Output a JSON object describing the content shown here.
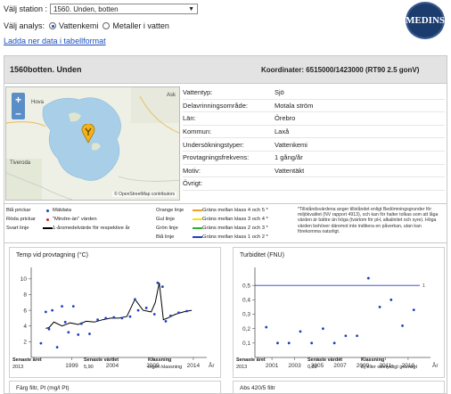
{
  "station_select": {
    "label": "Välj station :",
    "value": "1560. Unden, botten"
  },
  "analysis": {
    "label": "Välj analys:",
    "options": [
      "Vattenkemi",
      "Metaller i vatten"
    ],
    "selected": "Vattenkemi"
  },
  "download_link": "Ladda ner data i tabellformat",
  "logo_text": "MEDINS",
  "station": {
    "name": "1560botten. Unden",
    "coordinates": "Koordinater: 6515000/1423000 (RT90 2.5 gonV)"
  },
  "map": {
    "zoom_in": "+",
    "zoom_out": "–",
    "places": [
      "Hova",
      "Ask",
      "Tiveroda"
    ],
    "attribution": "© OpenStreetMap contributors"
  },
  "info": [
    {
      "label": "Vattentyp:",
      "value": "Sjö"
    },
    {
      "label": "Delavrinningsområde:",
      "value": "Motala ström"
    },
    {
      "label": "Län:",
      "value": "Örebro"
    },
    {
      "label": "Kommun:",
      "value": "Laxå"
    },
    {
      "label": "Undersökningstyper:",
      "value": "Vattenkemi"
    },
    {
      "label": "Provtagningsfrekvens:",
      "value": "1 gång/år"
    },
    {
      "label": "Motiv:",
      "value": "Vattentäkt"
    },
    {
      "label": "Övrigt:",
      "value": ""
    }
  ],
  "legend": {
    "left": [
      {
        "key": "Blå prickar",
        "text": "Mätdata",
        "color": "#1f3fbf"
      },
      {
        "key": "Röda prickar",
        "text": "\"Mindre-än\" värden",
        "color": "#d62020"
      },
      {
        "key": "Svart linje",
        "text": "1-årsmedelvärde för respektive år",
        "color": "#000000"
      }
    ],
    "right": [
      {
        "key": "Orange linje",
        "text": "Gräns mellan klass 4 och 5 *",
        "color": "#f0a020"
      },
      {
        "key": "Gul linje",
        "text": "Gräns mellan klass 3 och 4 *",
        "color": "#f5e400"
      },
      {
        "key": "Grön linje",
        "text": "Gräns mellan klass 2 och 3 *",
        "color": "#2fae2f"
      },
      {
        "key": "Blå linje",
        "text": "Gräns mellan klass 1 och 2 *",
        "color": "#1f3fbf"
      }
    ],
    "note": "*Tillståndsvärdena anger tillståndet enligt Bedömningsgrunder för miljökvalitet (NV rapport 4913), och kan för halter tolkas som att låga värden är bättre än höga (tvärtom för pH, alkalinitet och syre). Höga värden behöver däremot inte indikera en påverkan, utan kan förekomma naturligt."
  },
  "chart_data": [
    {
      "type": "scatter",
      "title": "Temp vid provtagning (°C)",
      "xlabel": "År",
      "ylabel": "",
      "xlim": [
        1994,
        2015
      ],
      "ylim": [
        0,
        11
      ],
      "x_ticks": [
        1999,
        2004,
        2009,
        2014
      ],
      "y_ticks": [
        2,
        4,
        6,
        8,
        10
      ],
      "grid": false,
      "series": [
        {
          "name": "Mätdata",
          "x": [
            1995.2,
            1995.8,
            1996.2,
            1996.6,
            1997.2,
            1997.8,
            1998.2,
            1998.6,
            1999.2,
            1999.8,
            2000.2,
            2001.2,
            2002.2,
            2003.2,
            2004.2,
            2005.2,
            2006.2,
            2006.8,
            2007.2,
            2008.2,
            2009.2,
            2009.6,
            2010.2,
            2010.6,
            2011.2,
            2012.2,
            2013.2
          ],
          "y": [
            1.8,
            5.8,
            3.6,
            6.0,
            1.3,
            6.5,
            4.5,
            3.2,
            6.5,
            2.9,
            4.3,
            3.0,
            4.8,
            5.0,
            5.1,
            5.0,
            5.2,
            7.4,
            6.0,
            6.3,
            5.5,
            9.5,
            9.0,
            4.6,
            5.3,
            5.7,
            5.9
          ]
        },
        {
          "name": "1-årsmedelvärde",
          "x": [
            1995.8,
            1996.2,
            1996.8,
            1997.8,
            1998.8,
            1999.8,
            2000.8,
            2001.8,
            2002.8,
            2003.8,
            2004.8,
            2005.8,
            2006.8,
            2007.8,
            2008.8,
            2009.3,
            2009.8,
            2010.3,
            2010.8,
            2011.8,
            2012.8,
            2013.8
          ],
          "y": [
            3.7,
            3.8,
            4.5,
            4.0,
            4.4,
            4.2,
            4.6,
            4.5,
            4.8,
            5.0,
            5.0,
            5.2,
            7.4,
            6.0,
            5.8,
            7.0,
            9.5,
            4.8,
            5.0,
            5.5,
            5.8,
            6.0
          ]
        }
      ],
      "stats": {
        "latest_year_label": "Senaste året",
        "latest_year": "2013",
        "latest_value_label": "Senaste värdet",
        "latest_value": "5,90",
        "class_label": "Klassning",
        "class": "Ingen klassning"
      }
    },
    {
      "type": "scatter",
      "title": "Turbiditet (FNU)",
      "xlabel": "År",
      "ylabel": "",
      "xlim": [
        1999.5,
        2014.5
      ],
      "ylim": [
        0,
        0.6
      ],
      "x_ticks": [
        2001,
        2003,
        2005,
        2007,
        2009,
        2011,
        2013
      ],
      "y_ticks": [
        0.1,
        0.2,
        0.3,
        0.4,
        0.5
      ],
      "y_tick_labels": [
        "0,1",
        "0,2",
        "0,3",
        "0,4",
        "0,5"
      ],
      "grid": false,
      "class_line": {
        "value": 0.5,
        "label": "1",
        "color": "#1f3fbf"
      },
      "series": [
        {
          "name": "Mätdata",
          "x": [
            2000.5,
            2001.5,
            2002.5,
            2003.5,
            2004.5,
            2005.5,
            2006.5,
            2007.5,
            2008.5,
            2009.5,
            2010.5,
            2011.5,
            2012.5,
            2013.5
          ],
          "y": [
            0.21,
            0.1,
            0.1,
            0.18,
            0.1,
            0.2,
            0.1,
            0.15,
            0.15,
            0.55,
            0.35,
            0.4,
            0.22,
            0.33
          ]
        }
      ],
      "stats": {
        "latest_year_label": "Senaste året",
        "latest_year": "2013",
        "latest_value_label": "Senaste värdet",
        "latest_value": "0,33",
        "class_label": "Klassning",
        "class": "Ej eller obetydligt grumligt"
      }
    }
  ],
  "bottom_boxes": [
    "Färg filtr, Pt (mg/l Pt)",
    "Abs 420/5 filtr"
  ]
}
